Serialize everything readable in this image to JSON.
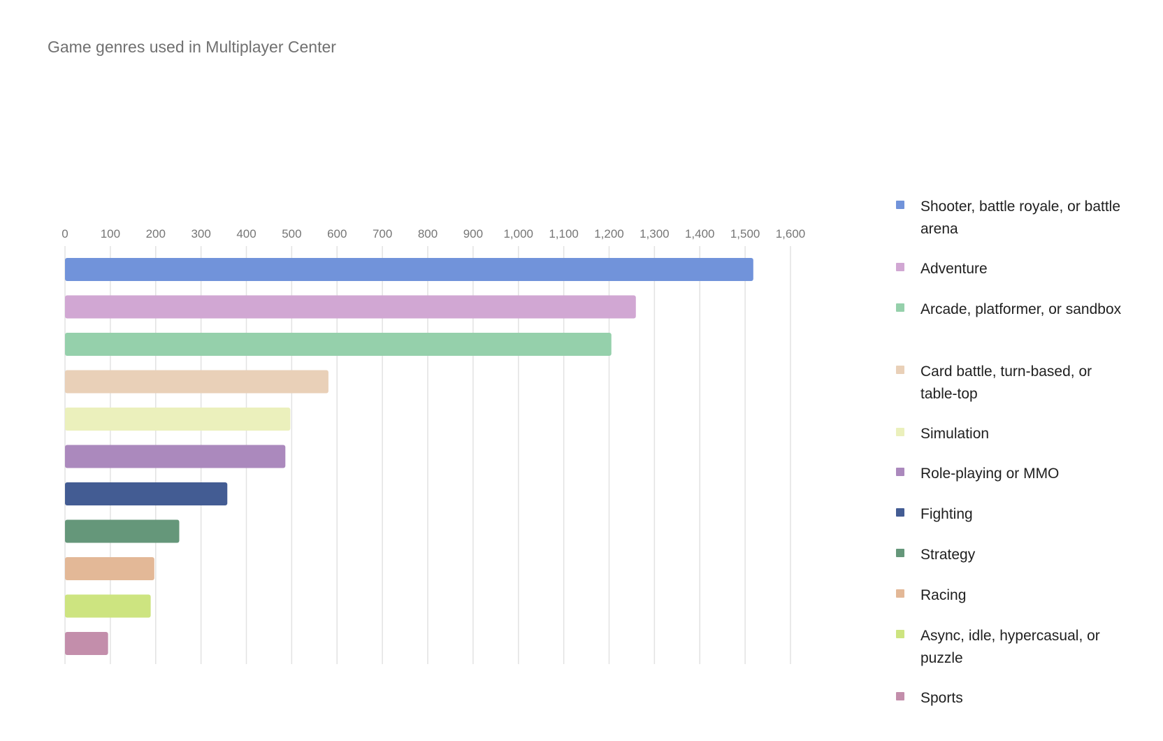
{
  "chart_data": {
    "type": "bar",
    "orientation": "horizontal",
    "title": "Game genres used in Multiplayer Center",
    "xlabel": "",
    "ylabel": "",
    "xlim": [
      0,
      1600
    ],
    "ticks": [
      "0",
      "100",
      "200",
      "300",
      "400",
      "500",
      "600",
      "700",
      "800",
      "900",
      "1,000",
      "1,100",
      "1,200",
      "1,300",
      "1,400",
      "1,500",
      "1,600"
    ],
    "tick_values": [
      0,
      100,
      200,
      300,
      400,
      500,
      600,
      700,
      800,
      900,
      1000,
      1100,
      1200,
      1300,
      1400,
      1500,
      1600
    ],
    "grid": "vertical",
    "legend_position": "right",
    "categories": [
      "Shooter, battle royale, or battle arena",
      "Adventure",
      "Arcade, platformer, or sandbox",
      "Card battle, turn-based, or table-top",
      "Simulation",
      "Role-playing or MMO",
      "Fighting",
      "Strategy",
      "Racing",
      "Async, idle, hypercasual, or puzzle",
      "Sports"
    ],
    "values": [
      1518,
      1259,
      1205,
      581,
      497,
      486,
      358,
      252,
      197,
      189,
      95
    ],
    "colors": [
      "#7193da",
      "#d1a7d3",
      "#95d0ab",
      "#e9d0b8",
      "#ebf0bc",
      "#ab89bd",
      "#435c93",
      "#65977a",
      "#e3b897",
      "#cde480",
      "#c38eab"
    ]
  }
}
